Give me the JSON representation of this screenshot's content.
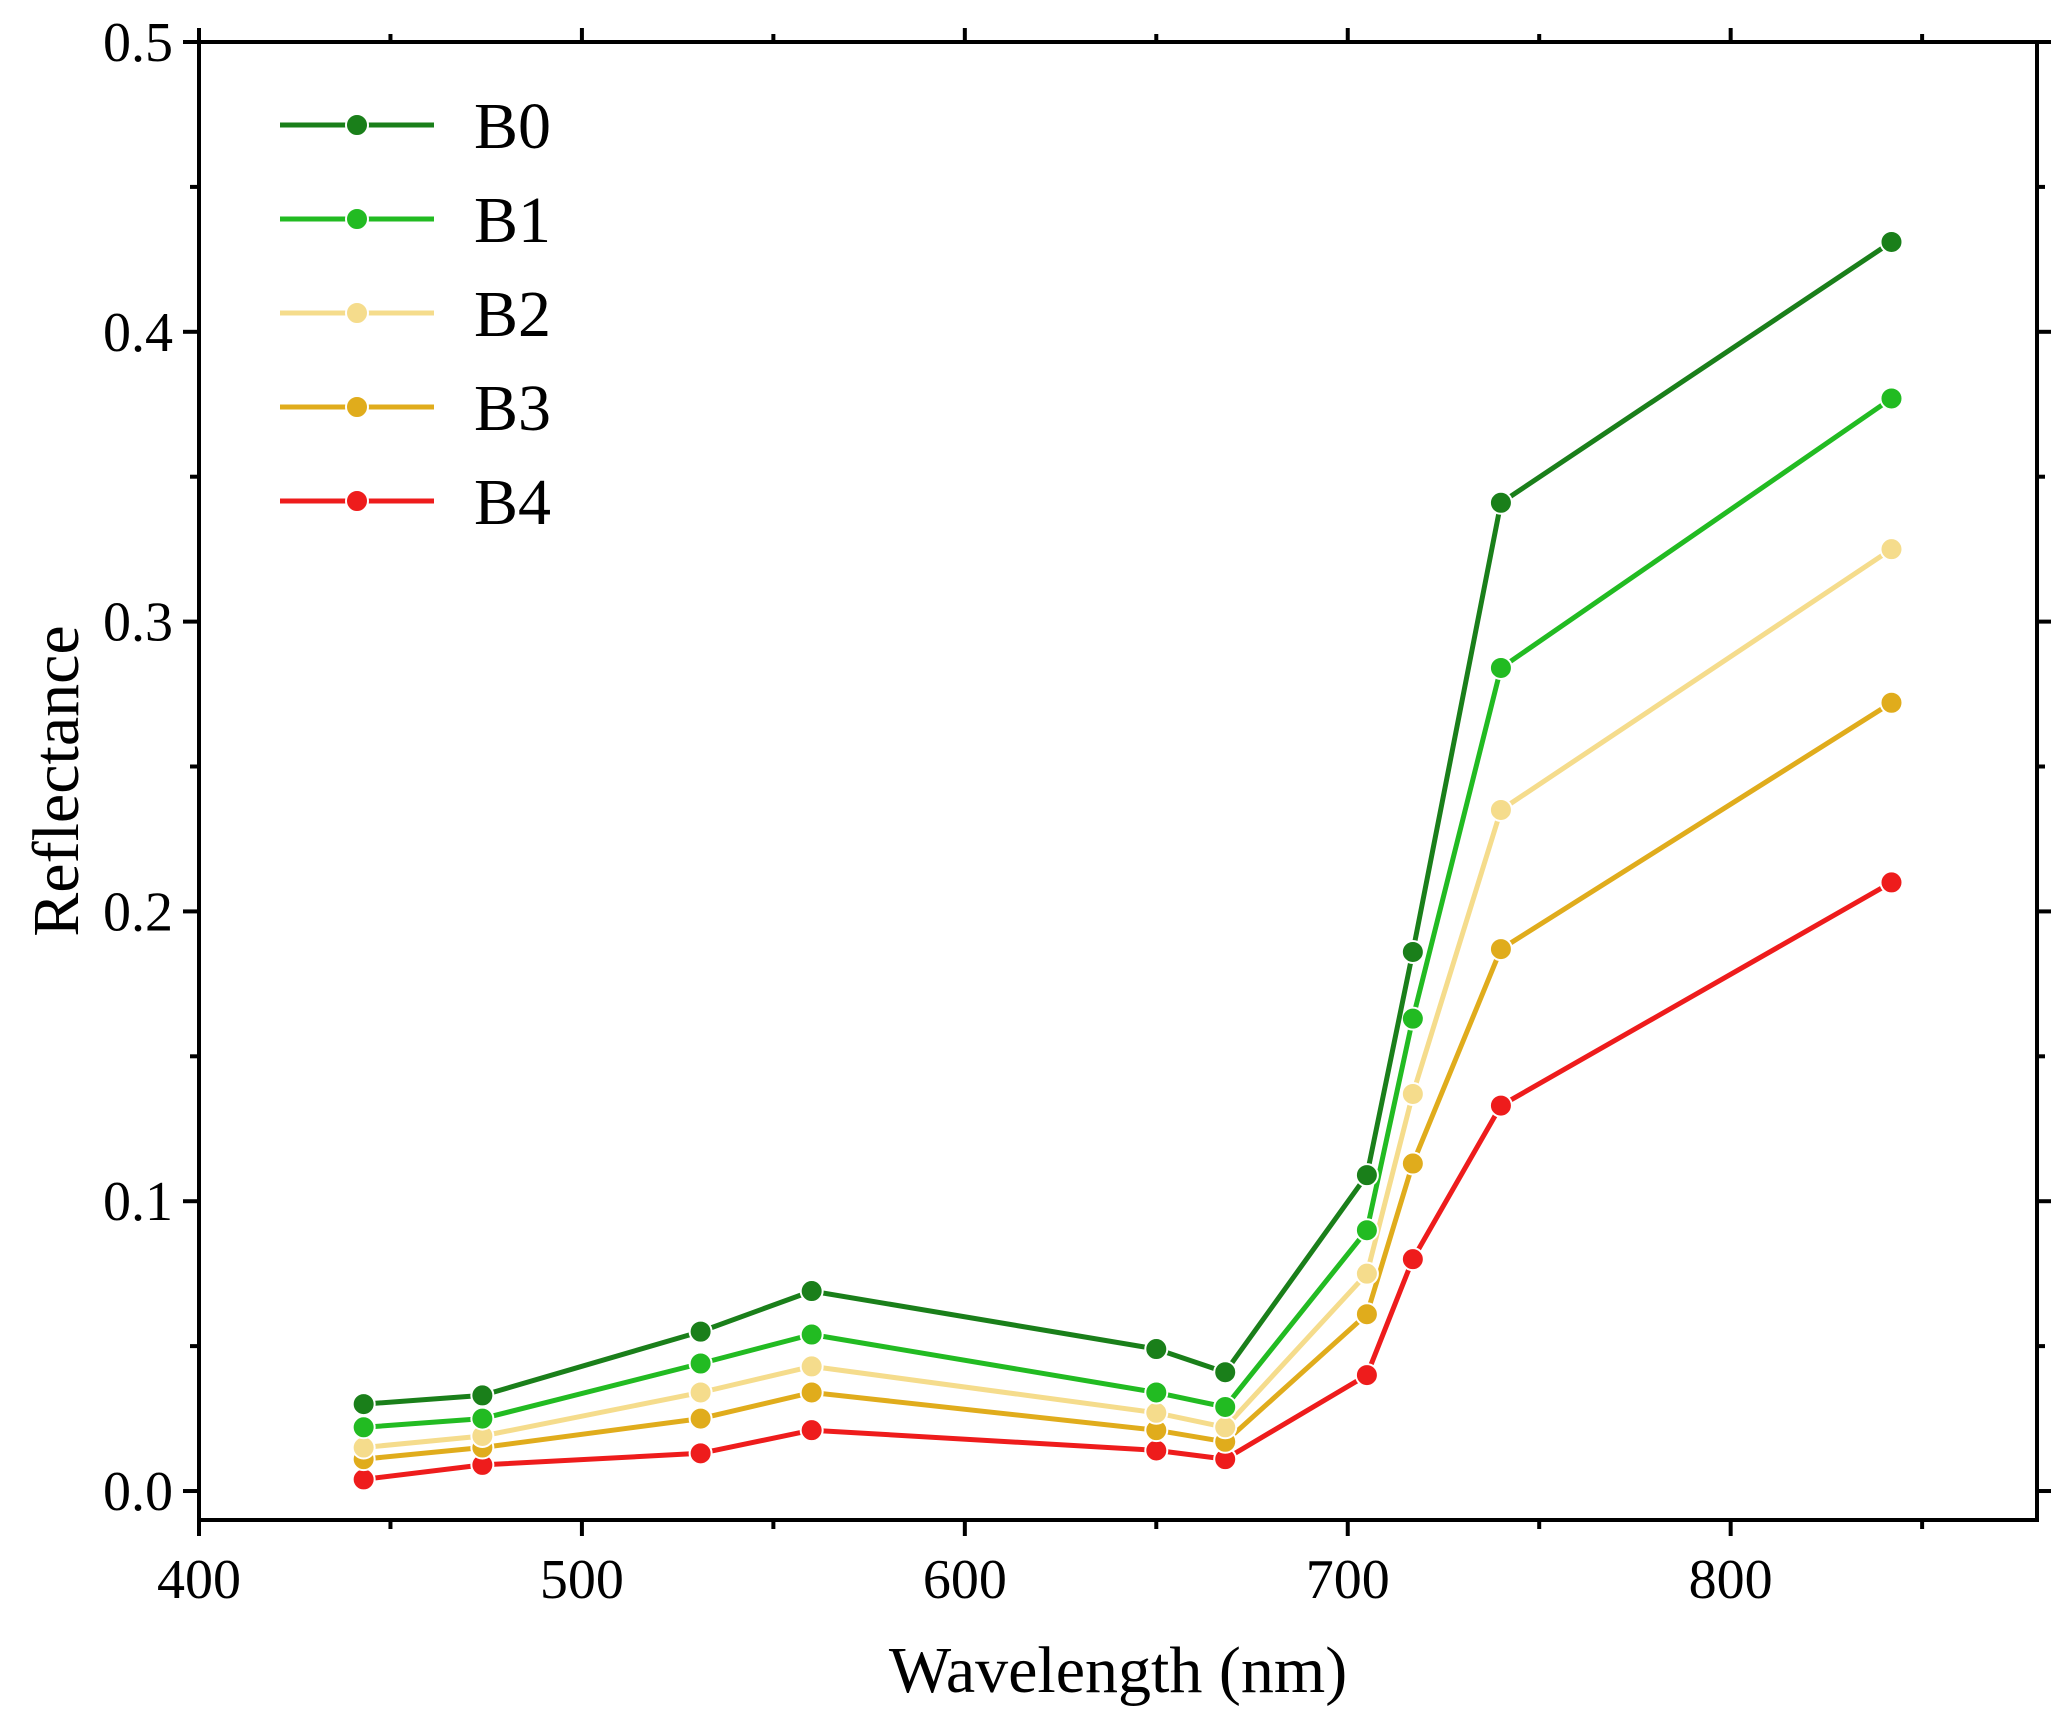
{
  "chart_data": {
    "type": "line",
    "title": "",
    "xlabel": "Wavelength (nm)",
    "ylabel": "Reflectance",
    "xlim": [
      400,
      880
    ],
    "ylim": [
      -0.01,
      0.5
    ],
    "x_ticks": [
      "400",
      "500",
      "600",
      "700",
      "800"
    ],
    "y_ticks": [
      "0.0",
      "0.1",
      "0.2",
      "0.3",
      "0.4",
      "0.5"
    ],
    "grid": false,
    "legend_position": "top-left",
    "x": [
      443,
      474,
      531,
      560,
      650,
      668,
      705,
      717,
      740,
      842
    ],
    "series": [
      {
        "name": "B0",
        "color": "#1a7f1a",
        "values": [
          0.03,
          0.033,
          0.055,
          0.069,
          0.049,
          0.041,
          0.109,
          0.186,
          0.341,
          0.431
        ]
      },
      {
        "name": "B1",
        "color": "#22bb22",
        "values": [
          0.022,
          0.025,
          0.044,
          0.054,
          0.034,
          0.029,
          0.09,
          0.163,
          0.284,
          0.377
        ]
      },
      {
        "name": "B2",
        "color": "#f5dc8c",
        "values": [
          0.015,
          0.019,
          0.034,
          0.043,
          0.027,
          0.022,
          0.075,
          0.137,
          0.235,
          0.325
        ]
      },
      {
        "name": "B3",
        "color": "#e0ac1c",
        "values": [
          0.011,
          0.015,
          0.025,
          0.034,
          0.021,
          0.017,
          0.061,
          0.113,
          0.187,
          0.272
        ]
      },
      {
        "name": "B4",
        "color": "#ee1c1c",
        "values": [
          0.004,
          0.009,
          0.013,
          0.021,
          0.014,
          0.011,
          0.04,
          0.08,
          0.133,
          0.21
        ]
      }
    ]
  }
}
